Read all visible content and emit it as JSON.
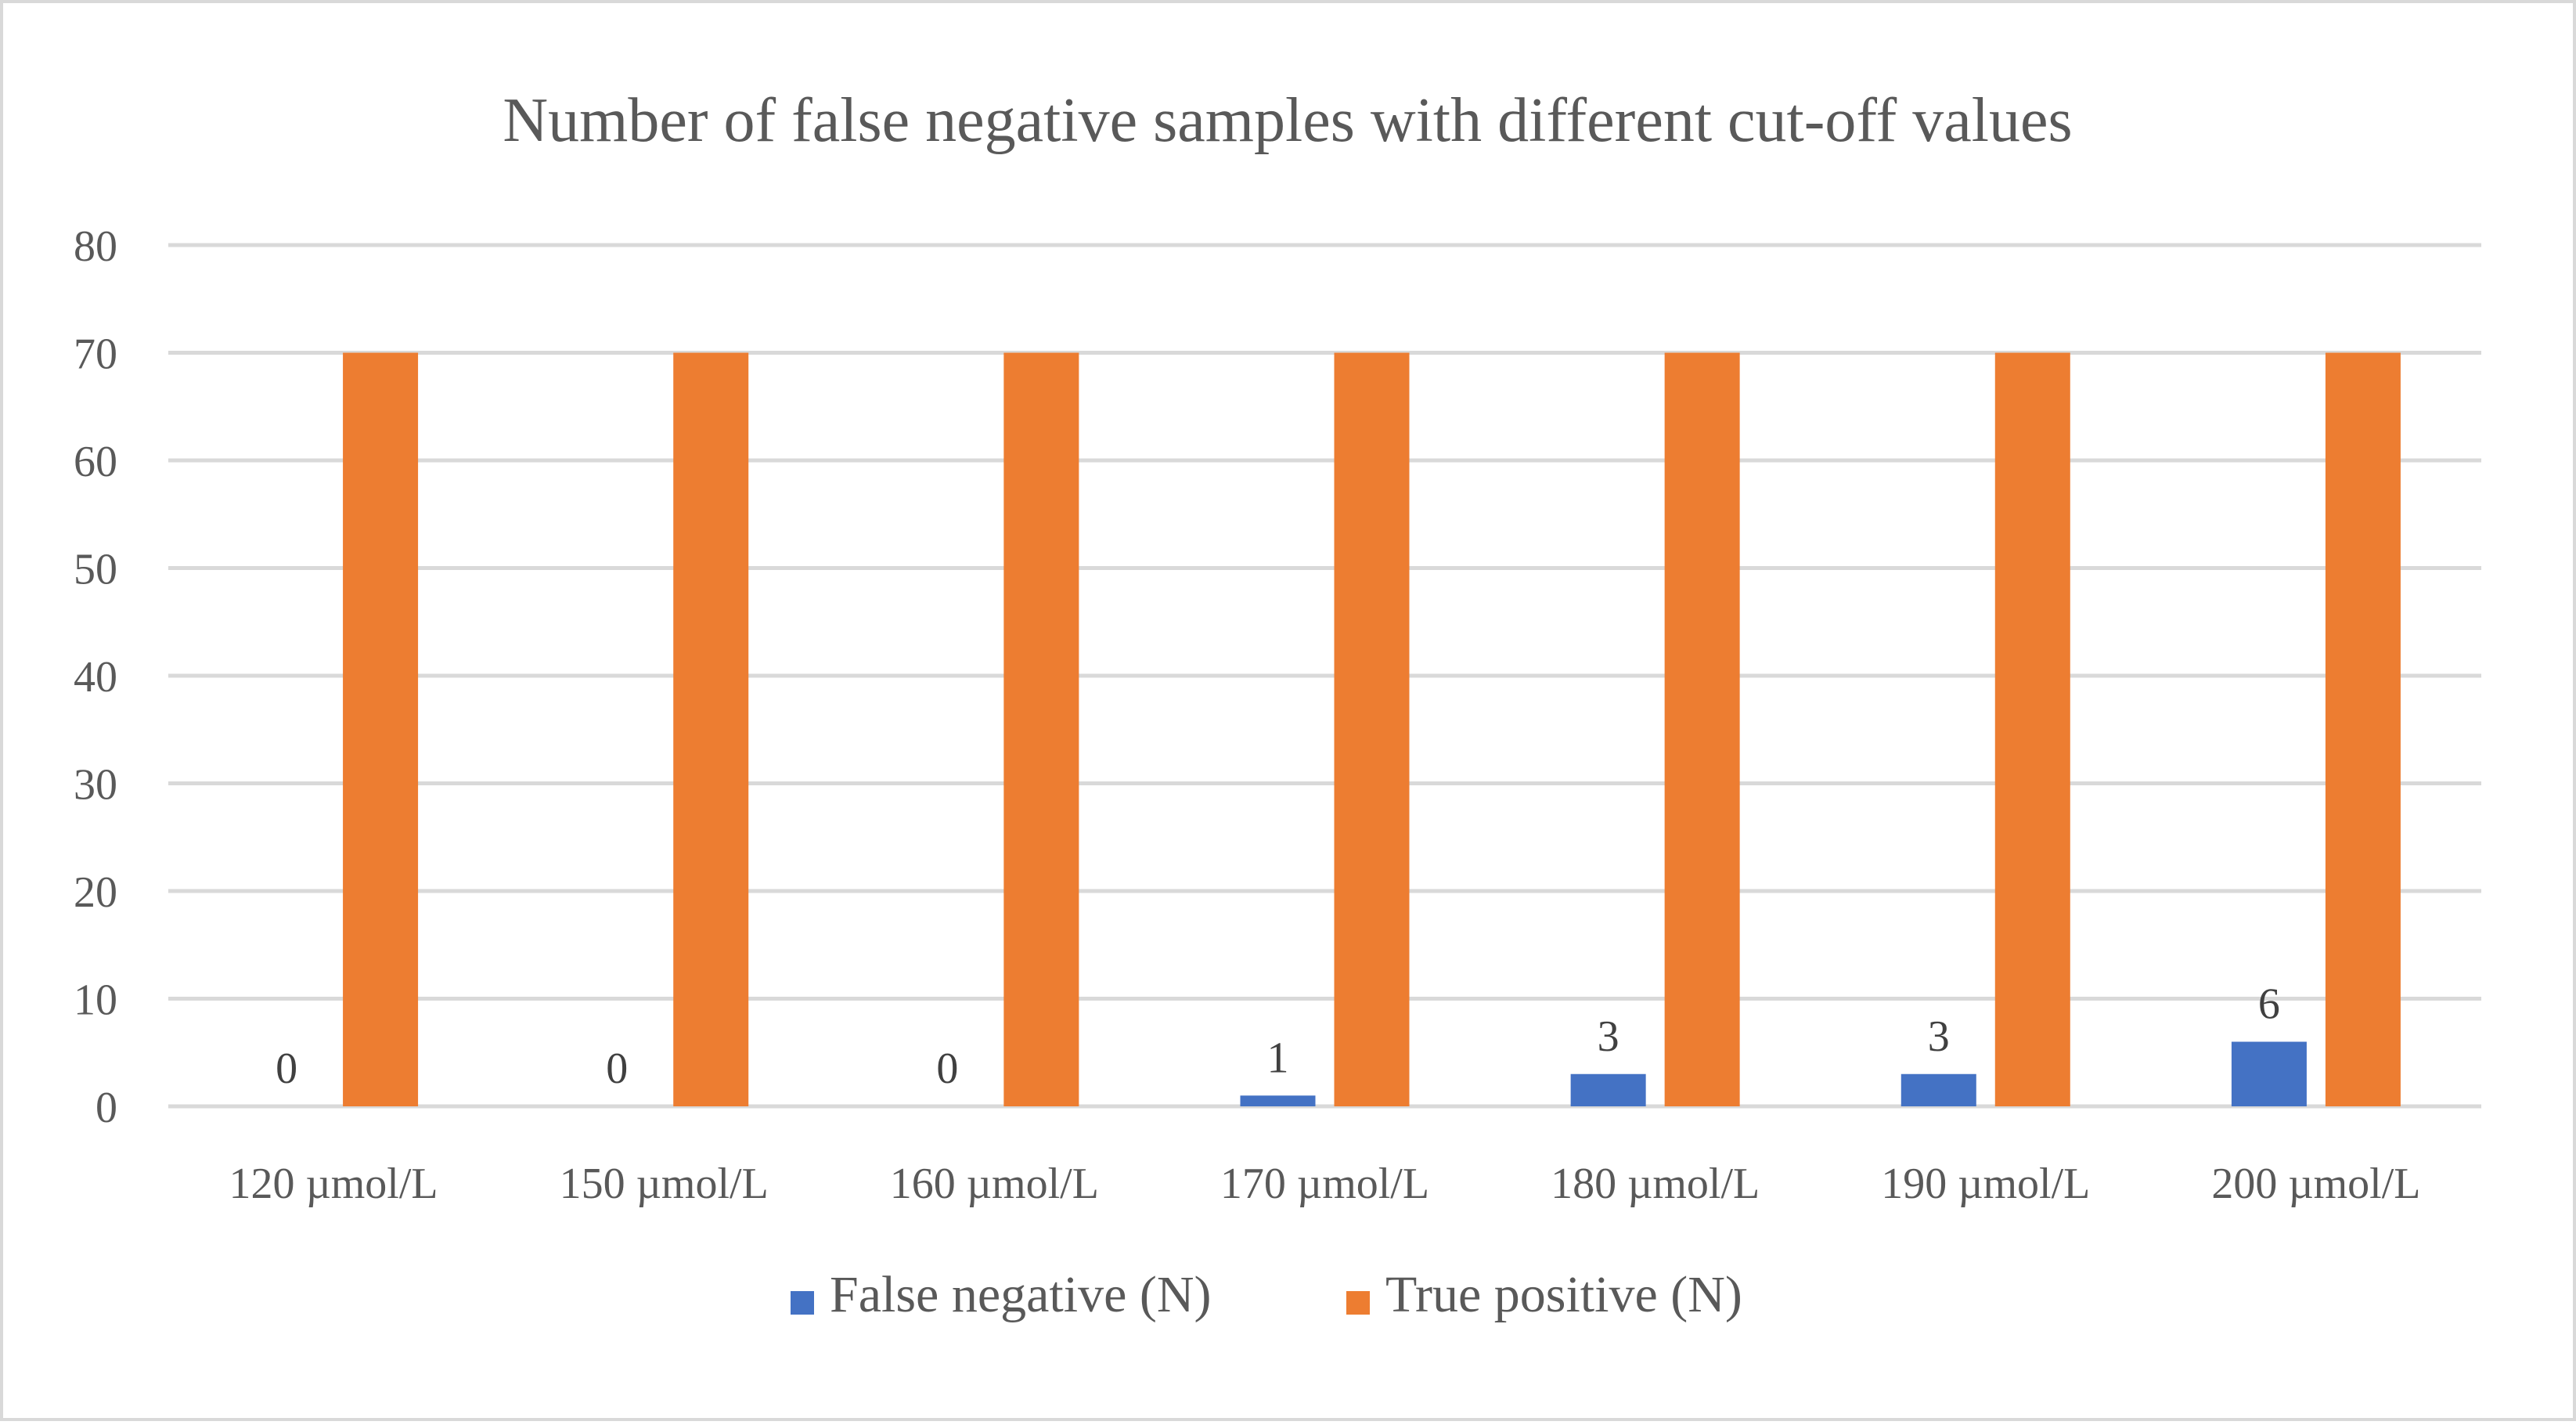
{
  "chart_data": {
    "type": "bar",
    "title": "Number of false negative samples with different cut-off values",
    "xlabel": "",
    "ylabel": "",
    "categories": [
      "120 µmol/L",
      "150 µmol/L",
      "160 µmol/L",
      "170 µmol/L",
      "180 µmol/L",
      "190 µmol/L",
      "200 µmol/L"
    ],
    "series": [
      {
        "name": "False negative (N)",
        "values": [
          0,
          0,
          0,
          1,
          3,
          3,
          6
        ],
        "color": "#4472C4",
        "data_labels": true
      },
      {
        "name": "True positive (N)",
        "values": [
          70,
          70,
          70,
          70,
          70,
          70,
          70
        ],
        "color": "#ED7D31",
        "data_labels": false
      }
    ],
    "ylim": [
      0,
      80
    ],
    "yticks": [
      0,
      10,
      20,
      30,
      40,
      50,
      60,
      70,
      80
    ],
    "grid": true,
    "legend": "bottom-center",
    "gridline_color": "#D9D9D9",
    "text_color": "#595959",
    "label_color": "#404040",
    "border_color": "#D9D9D9"
  }
}
